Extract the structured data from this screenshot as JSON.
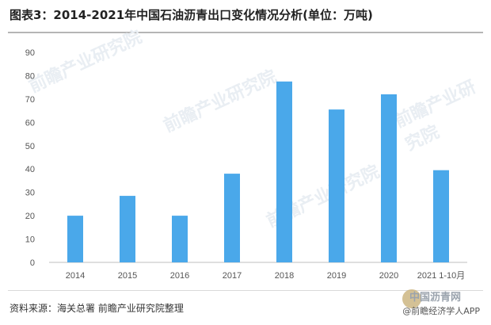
{
  "title": "图表3：2014-2021年中国石油沥青出口变化情况分析(单位：万吨)",
  "source": "资料来源：海关总署 前瞻产业研究院整理",
  "watermark_text": "前瞻产业研究院",
  "brand": {
    "site": "中国沥青网",
    "app": "@前瞻经济学人APP"
  },
  "colors": {
    "bar": "#4aa8ea",
    "axis": "#bfbfbf",
    "text": "#555555"
  },
  "chart_data": {
    "type": "bar",
    "title": "图表3：2014-2021年中国石油沥青出口变化情况分析(单位：万吨)",
    "xlabel": "",
    "ylabel": "",
    "categories": [
      "2014",
      "2015",
      "2016",
      "2017",
      "2018",
      "2019",
      "2020",
      "2021 1-10月"
    ],
    "values": [
      20,
      28.5,
      20,
      38,
      77.5,
      65.5,
      72,
      39.5
    ],
    "ylim": [
      0,
      90
    ],
    "yticks": [
      0,
      10,
      20,
      30,
      40,
      50,
      60,
      70,
      80,
      90
    ],
    "grid": false,
    "legend": "none"
  }
}
